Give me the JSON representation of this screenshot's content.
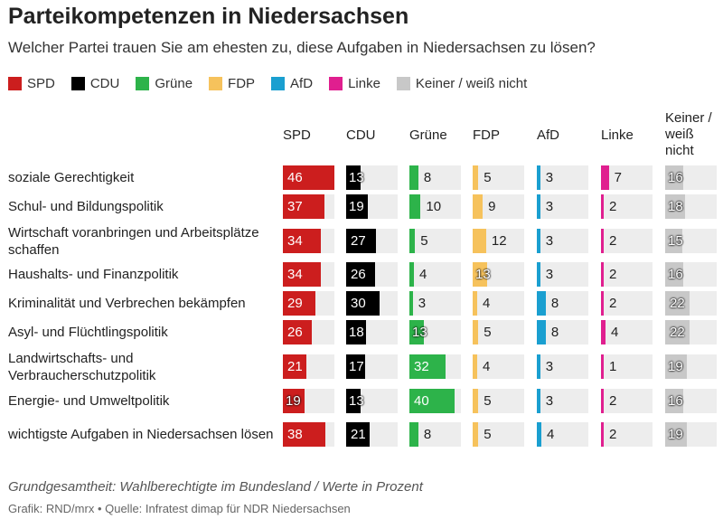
{
  "header": {
    "title": "Parteikompetenzen in Niedersachsen",
    "subtitle": "Welcher Partei trauen Sie am ehesten zu, diese Aufgaben in Niedersachsen zu lösen?"
  },
  "legend": [
    {
      "label": "SPD",
      "color": "#cc1e1e"
    },
    {
      "label": "CDU",
      "color": "#000000"
    },
    {
      "label": "Grüne",
      "color": "#2db34a"
    },
    {
      "label": "FDP",
      "color": "#f6c25c"
    },
    {
      "label": "AfD",
      "color": "#1a9fd0"
    },
    {
      "label": "Linke",
      "color": "#e01f8f"
    },
    {
      "label": "Keiner / weiß nicht",
      "color": "#c8c8c8"
    }
  ],
  "chart_data": {
    "type": "table",
    "title": "Parteikompetenzen in Niedersachsen",
    "subtitle": "Welcher Partei trauen Sie am ehesten zu, diese Aufgaben in Niedersachsen zu lösen?",
    "columns": [
      "SPD",
      "CDU",
      "Grüne",
      "FDP",
      "AfD",
      "Linke",
      "Keiner / weiß nicht"
    ],
    "rows": [
      {
        "label": "soziale Gerechtigkeit",
        "values": [
          46,
          13,
          8,
          5,
          3,
          7,
          16
        ]
      },
      {
        "label": "Schul- und Bildungspolitik",
        "values": [
          37,
          19,
          10,
          9,
          3,
          2,
          18
        ]
      },
      {
        "label": "Wirtschaft voranbringen und Arbeitsplätze schaffen",
        "values": [
          34,
          27,
          5,
          12,
          3,
          2,
          15
        ]
      },
      {
        "label": "Haushalts- und Finanzpolitik",
        "values": [
          34,
          26,
          4,
          13,
          3,
          2,
          16
        ]
      },
      {
        "label": "Kriminalität und Verbrechen bekämpfen",
        "values": [
          29,
          30,
          3,
          4,
          8,
          2,
          22
        ]
      },
      {
        "label": "Asyl- und Flüchtlingspolitik",
        "values": [
          26,
          18,
          13,
          5,
          8,
          4,
          22
        ]
      },
      {
        "label": "Landwirtschafts- und Verbraucherschutzpolitik",
        "values": [
          21,
          17,
          32,
          4,
          3,
          1,
          19
        ]
      },
      {
        "label": "Energie- und Umweltpolitik",
        "values": [
          19,
          13,
          40,
          5,
          3,
          2,
          16
        ]
      },
      {
        "label": "wichtigste Aufgaben in Niedersachsen lösen",
        "values": [
          38,
          21,
          8,
          5,
          4,
          2,
          19
        ]
      }
    ],
    "max_value": 46
  },
  "footer": {
    "note": "Grundgesamtheit: Wahlberechtigte im Bundesland / Werte in Prozent",
    "source": "Grafik: RND/mrx • Quelle: Infratest dimap für NDR Niedersachsen"
  }
}
